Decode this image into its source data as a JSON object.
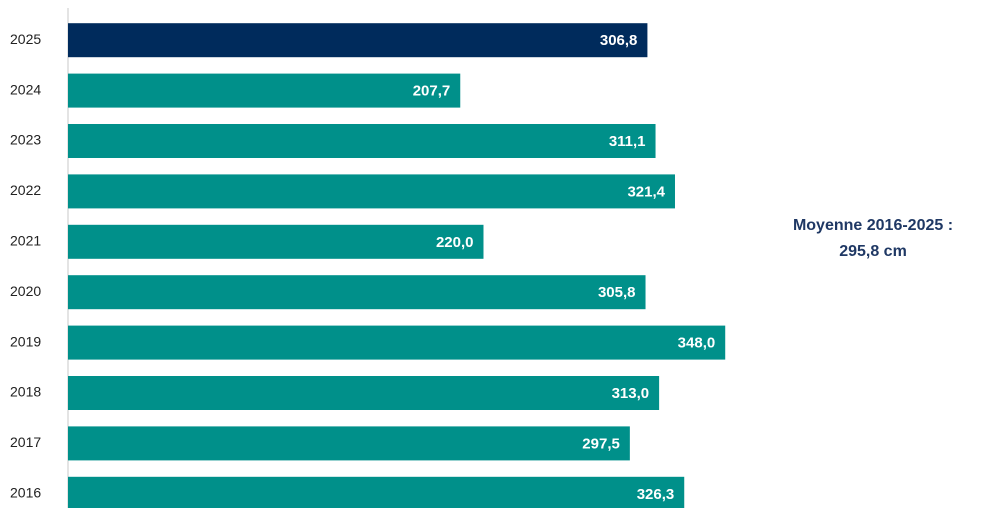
{
  "chart_data": {
    "type": "barh",
    "categories": [
      "2025",
      "2024",
      "2023",
      "2022",
      "2021",
      "2020",
      "2019",
      "2018",
      "2017",
      "2016"
    ],
    "values": [
      306.8,
      207.7,
      311.1,
      321.4,
      220.0,
      305.8,
      348.0,
      313.0,
      297.5,
      326.3
    ],
    "value_labels": [
      "306,8",
      "207,7",
      "311,1",
      "321,4",
      "220,0",
      "305,8",
      "348,0",
      "313,0",
      "297,5",
      "326,3"
    ],
    "colors": [
      "#002b5c",
      "#00908a",
      "#00908a",
      "#00908a",
      "#00908a",
      "#00908a",
      "#00908a",
      "#00908a",
      "#00908a",
      "#00908a"
    ],
    "xlim": [
      0,
      350
    ],
    "annotation": [
      "Moyenne 2016-2025 :",
      "295,8 cm"
    ]
  }
}
